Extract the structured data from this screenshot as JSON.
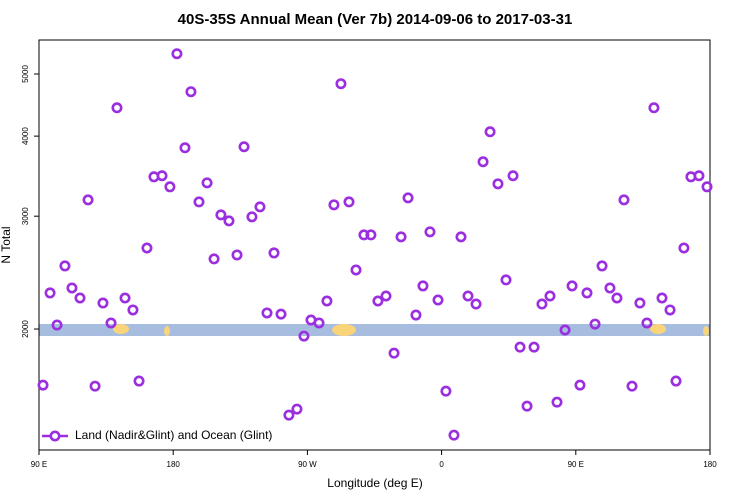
{
  "chart_data": {
    "type": "scatter",
    "title": "40S-35S Annual Mean (Ver 7b)   2014-09-06 to 2017-03-31",
    "x_label": "Longitude (deg E)",
    "y_label": "N Total",
    "xlim": [
      90,
      540
    ],
    "ylim": [
      1295,
      5650
    ],
    "ylog": true,
    "xticks": [
      {
        "value": 90,
        "label": "90 E"
      },
      {
        "value": 180,
        "label": "180"
      },
      {
        "value": 270,
        "label": "90 W"
      },
      {
        "value": 360,
        "label": "0"
      },
      {
        "value": 450,
        "label": "90 E"
      },
      {
        "value": 540,
        "label": "180"
      }
    ],
    "yticks": [
      2000,
      3000,
      4000,
      5000
    ],
    "legend_position": "lower left",
    "series": [
      {
        "name": "Land (Nadir&Glint) and Ocean (Glint)",
        "color": "#9b2fe0",
        "x": [
          92.7,
          97.4,
          102.1,
          107.4,
          112.1,
          117.5,
          122.9,
          127.6,
          132.9,
          138.3,
          142.3,
          147.7,
          153.0,
          157.1,
          162.4,
          167.1,
          172.5,
          177.8,
          182.5,
          187.9,
          191.9,
          197.3,
          202.7,
          207.4,
          212.0,
          217.4,
          222.8,
          227.5,
          232.8,
          238.2,
          242.9,
          247.6,
          252.3,
          257.6,
          263.0,
          267.7,
          272.4,
          277.8,
          283.1,
          287.8,
          292.5,
          297.9,
          302.6,
          307.9,
          312.6,
          317.3,
          322.7,
          328.1,
          332.8,
          337.5,
          342.8,
          347.5,
          352.2,
          357.6,
          362.9,
          368.3,
          373.0,
          377.7,
          383.1,
          387.8,
          392.5,
          397.8,
          403.2,
          407.9,
          412.6,
          417.3,
          422.0,
          427.3,
          432.7,
          437.4,
          442.8,
          447.5,
          452.8,
          457.5,
          462.9,
          467.6,
          472.9,
          477.6,
          482.3,
          487.7,
          493.0,
          497.7,
          502.4,
          507.8,
          513.2,
          517.2,
          522.5,
          527.2,
          532.6,
          538.0
        ],
        "values": [
          1635,
          2277,
          2029,
          2509,
          2318,
          2236,
          3181,
          1629,
          2196,
          2044,
          4429,
          2236,
          2142,
          1659,
          2676,
          3456,
          3469,
          3334,
          5378,
          3836,
          4692,
          3158,
          3382,
          2573,
          3014,
          2950,
          2610,
          3850,
          2993,
          3102,
          2119,
          2629,
          2110,
          1468,
          1500,
          1950,
          2066,
          2044,
          2212,
          3125,
          4829,
          3158,
          2473,
          2805,
          2805,
          2212,
          2252,
          1834,
          2785,
          3204,
          2103,
          2335,
          2836,
          2220,
          1600,
          1366,
          2785,
          2252,
          2188,
          3648,
          4063,
          3370,
          2386,
          3469,
          1874,
          1516,
          1874,
          2188,
          2252,
          1538,
          1993,
          2335,
          1635,
          2277,
          2036,
          2509,
          2318,
          2236,
          3181,
          1629,
          2196,
          2044,
          4429,
          2236,
          2142,
          1659,
          2676,
          3456,
          3469,
          3334
        ]
      }
    ]
  }
}
